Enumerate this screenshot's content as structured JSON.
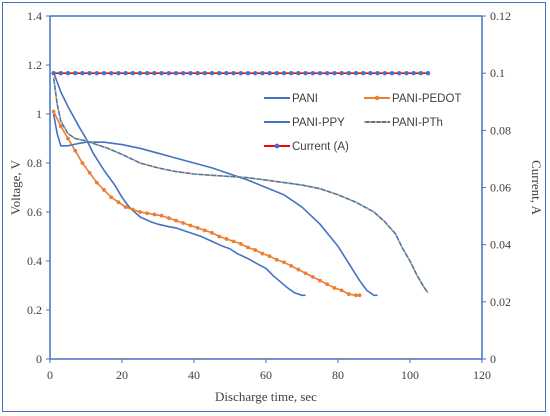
{
  "chart_data": {
    "type": "line",
    "title": "",
    "xlabel": "Discharge time, sec",
    "ylabel_left": "Voltage, V",
    "ylabel_right": "Current, A",
    "xlim": [
      0,
      120
    ],
    "ylim_left": [
      0,
      1.4
    ],
    "ylim_right": [
      0,
      0.12
    ],
    "x_ticks": [
      "0",
      "20",
      "40",
      "60",
      "80",
      "100",
      "120"
    ],
    "y_ticks_left": [
      "0",
      "0.2",
      "0.4",
      "0.6",
      "0.8",
      "1",
      "1.2",
      "1.4"
    ],
    "y_ticks_right": [
      "0",
      "0.02",
      "0.04",
      "0.06",
      "0.08",
      "0.1",
      "0.12"
    ],
    "grid": false,
    "legend_position": "upper-right",
    "series": [
      {
        "name": "PANI",
        "color": "#4472c4",
        "axis": "left",
        "marker": "none",
        "x": [
          1,
          3,
          5,
          8,
          10,
          12,
          15,
          18,
          20,
          22,
          25,
          28,
          30,
          33,
          35,
          38,
          40,
          42,
          45,
          48,
          50,
          52,
          55,
          58,
          60,
          62,
          64,
          66,
          68,
          70,
          71
        ],
        "y": [
          1.17,
          1.09,
          1.03,
          0.95,
          0.9,
          0.84,
          0.77,
          0.71,
          0.66,
          0.62,
          0.58,
          0.56,
          0.55,
          0.54,
          0.535,
          0.52,
          0.51,
          0.5,
          0.48,
          0.46,
          0.45,
          0.43,
          0.41,
          0.385,
          0.37,
          0.34,
          0.315,
          0.29,
          0.27,
          0.26,
          0.26
        ]
      },
      {
        "name": "PANI-PEDOT",
        "color": "#ed7d31",
        "axis": "left",
        "marker": "circle",
        "x": [
          1,
          3,
          5,
          7,
          9,
          11,
          13,
          15,
          17,
          19,
          21,
          23,
          25,
          27,
          29,
          31,
          33,
          35,
          37,
          39,
          41,
          43,
          45,
          47,
          49,
          51,
          53,
          55,
          57,
          59,
          61,
          63,
          65,
          67,
          69,
          71,
          73,
          75,
          77,
          79,
          81,
          83,
          85,
          86
        ],
        "y": [
          1.01,
          0.95,
          0.9,
          0.85,
          0.8,
          0.76,
          0.72,
          0.69,
          0.66,
          0.64,
          0.62,
          0.61,
          0.6,
          0.595,
          0.59,
          0.585,
          0.575,
          0.565,
          0.555,
          0.545,
          0.535,
          0.525,
          0.515,
          0.5,
          0.49,
          0.48,
          0.47,
          0.455,
          0.445,
          0.43,
          0.42,
          0.405,
          0.395,
          0.38,
          0.365,
          0.35,
          0.335,
          0.32,
          0.305,
          0.29,
          0.28,
          0.265,
          0.26,
          0.26
        ]
      },
      {
        "name": "PANI-PPY",
        "color": "#4472c4",
        "axis": "left",
        "marker": "none",
        "x": [
          1,
          2,
          3,
          5,
          8,
          10,
          15,
          20,
          25,
          30,
          35,
          40,
          45,
          50,
          55,
          60,
          65,
          70,
          75,
          80,
          83,
          86,
          88,
          90,
          91
        ],
        "y": [
          1.0,
          0.92,
          0.87,
          0.87,
          0.88,
          0.885,
          0.885,
          0.875,
          0.86,
          0.84,
          0.82,
          0.8,
          0.78,
          0.755,
          0.73,
          0.7,
          0.67,
          0.62,
          0.55,
          0.46,
          0.39,
          0.32,
          0.28,
          0.26,
          0.26
        ]
      },
      {
        "name": "PANI-PTh",
        "color": "#4472c4",
        "axis": "left",
        "marker": "yellow-dash",
        "x": [
          1,
          2,
          3,
          5,
          7,
          10,
          13,
          16,
          20,
          25,
          30,
          35,
          40,
          45,
          50,
          55,
          60,
          65,
          70,
          75,
          80,
          85,
          90,
          93,
          96,
          98,
          100,
          102,
          104,
          105
        ],
        "y": [
          1.15,
          1.04,
          0.97,
          0.92,
          0.9,
          0.89,
          0.875,
          0.86,
          0.835,
          0.8,
          0.78,
          0.765,
          0.755,
          0.75,
          0.745,
          0.74,
          0.73,
          0.72,
          0.71,
          0.695,
          0.67,
          0.64,
          0.6,
          0.56,
          0.51,
          0.45,
          0.4,
          0.34,
          0.29,
          0.27
        ]
      },
      {
        "name": "Current (A)",
        "color": "#ff0000",
        "axis": "right",
        "marker": "circle-blue",
        "x": [
          1,
          3,
          5,
          7,
          9,
          11,
          13,
          15,
          17,
          19,
          21,
          23,
          25,
          27,
          29,
          31,
          33,
          35,
          37,
          39,
          41,
          43,
          45,
          47,
          49,
          51,
          53,
          55,
          57,
          59,
          61,
          63,
          65,
          67,
          69,
          71,
          73,
          75,
          77,
          79,
          81,
          83,
          85,
          87,
          89,
          91,
          93,
          95,
          97,
          99,
          101,
          103,
          105
        ],
        "y": [
          0.1,
          0.1,
          0.1,
          0.1,
          0.1,
          0.1,
          0.1,
          0.1,
          0.1,
          0.1,
          0.1,
          0.1,
          0.1,
          0.1,
          0.1,
          0.1,
          0.1,
          0.1,
          0.1,
          0.1,
          0.1,
          0.1,
          0.1,
          0.1,
          0.1,
          0.1,
          0.1,
          0.1,
          0.1,
          0.1,
          0.1,
          0.1,
          0.1,
          0.1,
          0.1,
          0.1,
          0.1,
          0.1,
          0.1,
          0.1,
          0.1,
          0.1,
          0.1,
          0.1,
          0.1,
          0.1,
          0.1,
          0.1,
          0.1,
          0.1,
          0.1,
          0.1,
          0.1
        ]
      }
    ]
  }
}
